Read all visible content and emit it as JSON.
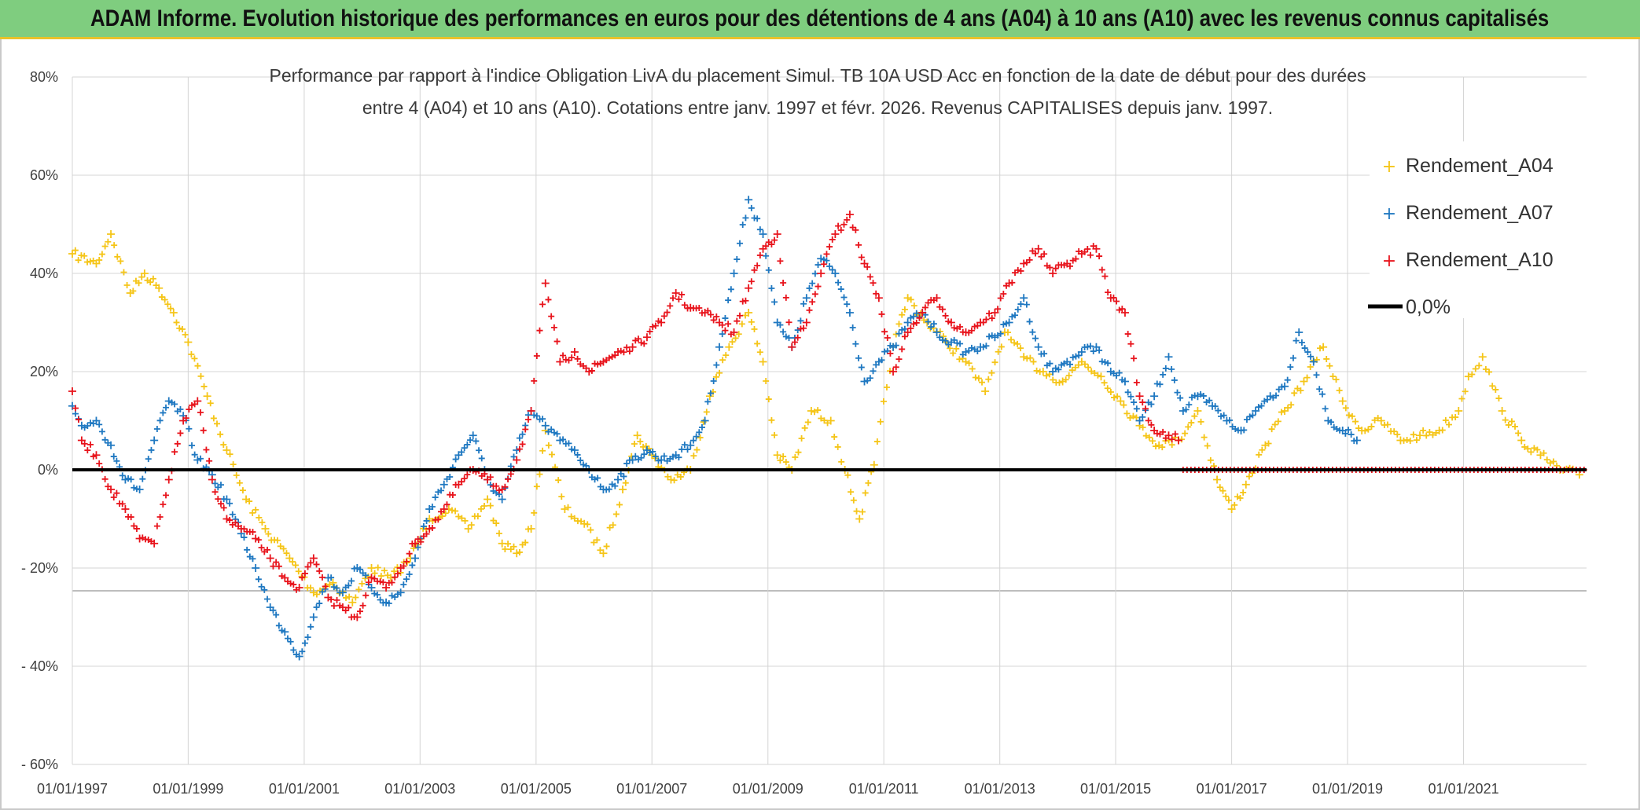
{
  "banner_title": "ADAM Informe. Evolution historique des performances en euros pour des détentions de 4 ans (A04) à 10 ans (A10) avec les revenus connus capitalisés",
  "colors": {
    "A04": "#f5c518",
    "A07": "#1f78c1",
    "A10": "#e8141c",
    "zero": "#000000",
    "banner": "#7fcd7f",
    "grid": "#d4d4d4"
  },
  "chart_data": {
    "type": "scatter",
    "subtitle_line1": "Performance par rapport à l'indice Obligation LivA  du placement Simul. TB 10A USD Acc en fonction de la date de début pour des durées",
    "subtitle_line2": "entre 4 (A04) et 10 ans (A10). Cotations entre janv. 1997 et févr. 2026. Revenus CAPITALISES depuis janv. 1997.",
    "x_ticks": [
      "01/01/1997",
      "01/01/1999",
      "01/01/2001",
      "01/01/2003",
      "01/01/2005",
      "01/01/2007",
      "01/01/2009",
      "01/01/2011",
      "01/01/2013",
      "01/01/2015",
      "01/01/2017",
      "01/01/2019",
      "01/01/2021"
    ],
    "y_ticks": [
      "80%",
      "60%",
      "40%",
      "20%",
      "0%",
      "- 20%",
      "- 40%",
      "- 60%"
    ],
    "y_tick_values": [
      80,
      60,
      40,
      20,
      0,
      -20,
      -40,
      -60
    ],
    "xlim": [
      "1997-01-01",
      "2023-02-15"
    ],
    "ylim": [
      -60,
      80
    ],
    "marker": "+",
    "legend": {
      "position": "top-right"
    },
    "series": [
      {
        "name": "Rendement_A04",
        "key": "A04",
        "x": [
          "1997-01",
          "1997-06",
          "1997-09",
          "1998-01",
          "1998-04",
          "1998-07",
          "1998-10",
          "1999-01",
          "1999-05",
          "1999-09",
          "2000-01",
          "2000-05",
          "2000-10",
          "2001-03",
          "2001-07",
          "2001-11",
          "2002-03",
          "2002-07",
          "2002-11",
          "2003-03",
          "2003-07",
          "2003-11",
          "2004-03",
          "2004-06",
          "2004-09",
          "2004-12",
          "2005-03",
          "2005-07",
          "2005-11",
          "2006-03",
          "2006-07",
          "2006-10",
          "2007-01",
          "2007-05",
          "2007-09",
          "2008-01",
          "2008-05",
          "2008-09",
          "2008-12",
          "2009-03",
          "2009-06",
          "2009-10",
          "2010-02",
          "2010-05",
          "2010-08",
          "2010-11",
          "2011-03",
          "2011-06",
          "2011-10",
          "2012-02",
          "2012-06",
          "2012-10",
          "2013-02",
          "2013-06",
          "2013-10",
          "2014-02",
          "2014-06",
          "2014-10",
          "2015-02",
          "2015-06",
          "2015-10",
          "2016-02",
          "2016-06",
          "2016-10",
          "2017-01",
          "2017-04",
          "2017-08",
          "2017-12",
          "2018-04",
          "2018-08",
          "2018-12",
          "2019-04",
          "2019-08",
          "2019-12",
          "2020-04",
          "2020-08",
          "2020-12",
          "2021-02",
          "2021-05",
          "2021-09",
          "2022-01",
          "2022-05",
          "2022-09",
          "2023-01"
        ],
        "y": [
          44,
          42,
          48,
          36,
          40,
          37,
          32,
          26,
          15,
          4,
          -6,
          -12,
          -18,
          -25,
          -23,
          -27,
          -20,
          -22,
          -18,
          -10,
          -8,
          -12,
          -6,
          -15,
          -17,
          -12,
          8,
          -8,
          -11,
          -17,
          -4,
          7,
          3,
          -2,
          0,
          15,
          25,
          32,
          22,
          3,
          0,
          12,
          10,
          0,
          -10,
          1,
          25,
          35,
          30,
          26,
          22,
          16,
          28,
          23,
          20,
          18,
          22,
          19,
          14,
          9,
          5,
          6,
          12,
          -2,
          -8,
          -3,
          5,
          12,
          18,
          25,
          14,
          8,
          10,
          6,
          7,
          8,
          12,
          19,
          23,
          12,
          6,
          3,
          0,
          -1
        ]
      },
      {
        "name": "Rendement_A07",
        "key": "A07",
        "x": [
          "1997-01",
          "1997-03",
          "1997-06",
          "1997-09",
          "1997-12",
          "1998-03",
          "1998-06",
          "1998-09",
          "1998-12",
          "1999-03",
          "1999-06",
          "1999-09",
          "1999-12",
          "2000-03",
          "2000-06",
          "2000-09",
          "2000-12",
          "2001-03",
          "2001-06",
          "2001-09",
          "2001-12",
          "2002-03",
          "2002-06",
          "2002-09",
          "2002-12",
          "2003-03",
          "2003-06",
          "2003-09",
          "2003-12",
          "2004-03",
          "2004-06",
          "2004-09",
          "2004-12",
          "2005-03",
          "2005-06",
          "2005-09",
          "2005-12",
          "2006-03",
          "2006-06",
          "2006-09",
          "2006-12",
          "2007-03",
          "2007-06",
          "2007-09",
          "2007-12",
          "2008-03",
          "2008-06",
          "2008-09",
          "2008-12",
          "2009-03",
          "2009-06",
          "2009-09",
          "2009-12",
          "2010-03",
          "2010-06",
          "2010-09",
          "2010-12",
          "2011-03",
          "2011-06",
          "2011-09",
          "2011-12",
          "2012-03",
          "2012-06",
          "2012-09",
          "2012-12",
          "2013-03",
          "2013-06",
          "2013-09",
          "2013-12",
          "2014-03",
          "2014-06",
          "2014-09",
          "2014-12",
          "2015-03",
          "2015-06",
          "2015-09",
          "2015-12",
          "2016-03",
          "2016-06",
          "2016-09",
          "2016-12",
          "2017-03",
          "2017-06",
          "2017-09",
          "2017-12",
          "2018-03",
          "2018-06",
          "2018-09",
          "2018-12",
          "2019-03"
        ],
        "y": [
          13,
          9,
          10,
          5,
          -2,
          -4,
          6,
          14,
          11,
          2,
          -1,
          -6,
          -13,
          -20,
          -28,
          -33,
          -38,
          -30,
          -22,
          -25,
          -20,
          -24,
          -27,
          -25,
          -18,
          -8,
          -3,
          3,
          7,
          -2,
          -6,
          4,
          12,
          9,
          6,
          4,
          0,
          -4,
          -2,
          2,
          4,
          2,
          3,
          5,
          10,
          25,
          40,
          55,
          48,
          30,
          25,
          35,
          43,
          40,
          32,
          18,
          22,
          25,
          30,
          32,
          28,
          26,
          24,
          25,
          27,
          30,
          35,
          25,
          20,
          22,
          24,
          25,
          20,
          18,
          10,
          15,
          23,
          12,
          15,
          13,
          10,
          8,
          12,
          15,
          17,
          28,
          22,
          10,
          8,
          6
        ]
      },
      {
        "name": "Rendement_A10",
        "key": "A10",
        "x": [
          "1997-01",
          "1997-03",
          "1997-06",
          "1997-09",
          "1997-12",
          "1998-03",
          "1998-06",
          "1998-09",
          "1998-12",
          "1999-03",
          "1999-06",
          "1999-09",
          "1999-12",
          "2000-03",
          "2000-06",
          "2000-09",
          "2000-12",
          "2001-03",
          "2001-06",
          "2001-09",
          "2001-12",
          "2002-03",
          "2002-06",
          "2002-09",
          "2002-12",
          "2003-03",
          "2003-06",
          "2003-09",
          "2003-12",
          "2004-03",
          "2004-06",
          "2004-09",
          "2004-12",
          "2005-03",
          "2005-06",
          "2005-09",
          "2005-12",
          "2006-03",
          "2006-06",
          "2006-09",
          "2006-12",
          "2007-03",
          "2007-06",
          "2007-09",
          "2007-12",
          "2008-03",
          "2008-06",
          "2008-09",
          "2008-12",
          "2009-03",
          "2009-06",
          "2009-09",
          "2009-12",
          "2010-03",
          "2010-06",
          "2010-09",
          "2010-12",
          "2011-03",
          "2011-06",
          "2011-09",
          "2011-12",
          "2012-03",
          "2012-06",
          "2012-09",
          "2012-12",
          "2013-03",
          "2013-06",
          "2013-09",
          "2013-12",
          "2014-03",
          "2014-06",
          "2014-09",
          "2014-12",
          "2015-03",
          "2015-06",
          "2015-09",
          "2015-12",
          "2016-02"
        ],
        "y": [
          16,
          6,
          3,
          -4,
          -8,
          -14,
          -15,
          -2,
          10,
          14,
          -2,
          -10,
          -12,
          -14,
          -18,
          -22,
          -24,
          -18,
          -26,
          -28,
          -30,
          -22,
          -24,
          -20,
          -15,
          -12,
          -8,
          -3,
          0,
          -2,
          -4,
          2,
          12,
          38,
          22,
          24,
          20,
          22,
          24,
          25,
          27,
          30,
          36,
          33,
          32,
          30,
          28,
          37,
          45,
          48,
          25,
          30,
          40,
          48,
          52,
          42,
          35,
          20,
          28,
          32,
          35,
          30,
          28,
          30,
          32,
          38,
          42,
          45,
          40,
          42,
          44,
          45,
          35,
          32,
          15,
          8,
          7,
          6
        ]
      }
    ],
    "zero_line_label": "0,0%",
    "zero_line_y": 0,
    "zero_series_start": "2016-03",
    "zero_series_end": "2023-02"
  }
}
